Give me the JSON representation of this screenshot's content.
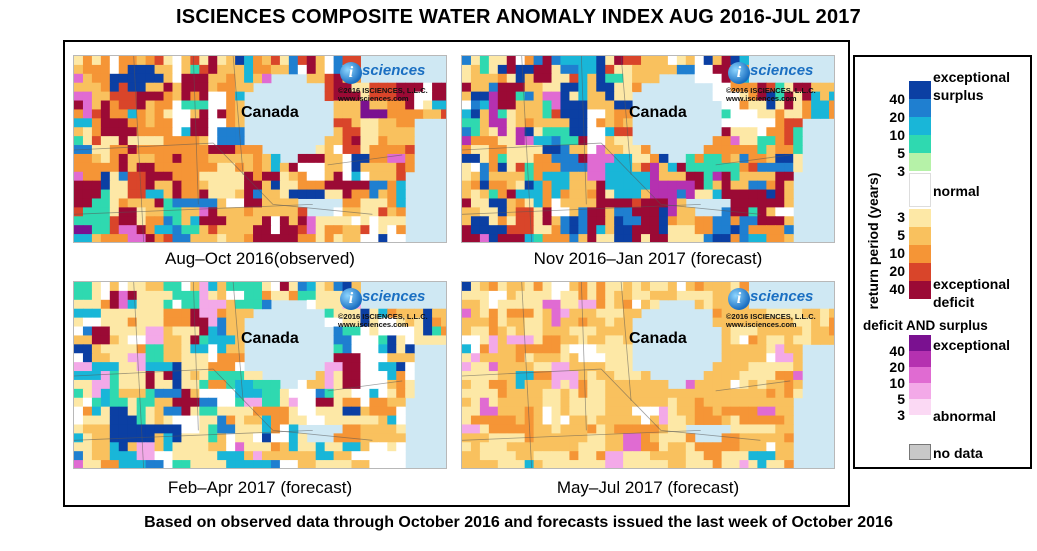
{
  "title": "ISCIENCES COMPOSITE WATER ANOMALY INDEX AUG 2016-JUL 2017",
  "logo": {
    "i": "i",
    "word": "sciences",
    "copyright": "©2016 ISCIENCES, L.L.C.",
    "url": "www.isciences.com"
  },
  "panels": [
    {
      "caption": "Aug–Oct 2016(observed)",
      "region_label": "Canada",
      "dominant": "deficit-heavy",
      "period": "Aug–Oct 2016"
    },
    {
      "caption": "Nov 2016–Jan 2017 (forecast)",
      "region_label": "Canada",
      "dominant": "mixed",
      "period": "Nov 2016–Jan 2017"
    },
    {
      "caption": "Feb–Apr 2017 (forecast)",
      "region_label": "Canada",
      "dominant": "surplus-south",
      "period": "Feb–Apr 2017"
    },
    {
      "caption": "May–Jul 2017 (forecast)",
      "region_label": "Canada",
      "dominant": "mild-deficit",
      "period": "May–Jul 2017"
    }
  ],
  "legend": {
    "axis_label": "return period (years)",
    "surplus": {
      "label_line1": "exceptional",
      "label_line2": "surplus",
      "ticks": [
        "40",
        "20",
        "10",
        "5",
        "3"
      ],
      "colors": [
        "#0b3fa3",
        "#1f7fd0",
        "#19b6d8",
        "#2fd9b0",
        "#b6f2a8"
      ]
    },
    "normal": {
      "label": "normal",
      "color": "#ffffff"
    },
    "deficit": {
      "ticks": [
        "3",
        "5",
        "10",
        "20",
        "40"
      ],
      "label_line1": "exceptional",
      "label_line2": "deficit",
      "colors": [
        "#fde8a6",
        "#f9c15e",
        "#f59536",
        "#d9452a",
        "#9b0a35"
      ]
    },
    "both": {
      "title": "deficit AND surplus",
      "label_top": "exceptional",
      "label_bottom": "abnormal",
      "ticks": [
        "40",
        "20",
        "10",
        "5",
        "3"
      ],
      "colors": [
        "#7a1190",
        "#b531b0",
        "#e06bd2",
        "#f3a9e8",
        "#fbd9f4"
      ]
    },
    "no_data": {
      "label": "no data",
      "color": "#c8c8c8"
    }
  },
  "footer": "Based on observed data through October 2016 and forecasts issued the last week of October 2016"
}
